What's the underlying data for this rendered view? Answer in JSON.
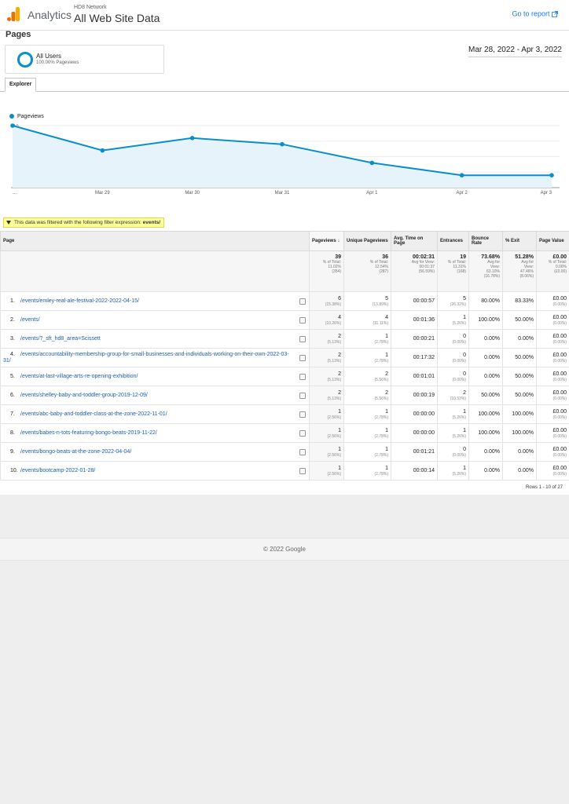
{
  "header": {
    "brand": "Analytics",
    "property": "HD8 Network",
    "view": "All Web Site Data",
    "goto_report": "Go to report"
  },
  "page_title": "Pages",
  "segment": {
    "name": "All Users",
    "sub": "100.00% Pageviews"
  },
  "date_range": "Mar 28, 2022 - Apr 3, 2022",
  "tab": "Explorer",
  "chart_data": {
    "type": "line",
    "series": [
      {
        "name": "Pageviews",
        "values": [
          10,
          6,
          8,
          7,
          4,
          2,
          2
        ]
      }
    ],
    "categories": [
      "...",
      "Mar 29",
      "Mar 30",
      "Mar 31",
      "Apr 1",
      "Apr 2",
      "Apr 3"
    ],
    "y_ticks": [
      "10",
      "5"
    ],
    "ylim": [
      0,
      10
    ],
    "grid": true,
    "color": "#0a8fca"
  },
  "filter": {
    "text": "This data was filtered with the following filter expression:",
    "expr": "events/"
  },
  "table": {
    "headers": {
      "page": "Page",
      "pageviews": "Pageviews",
      "unique": "Unique Pageviews",
      "avg_time": "Avg. Time on Page",
      "entrances": "Entrances",
      "bounce": "Bounce Rate",
      "exit": "% Exit",
      "value": "Page Value"
    },
    "totals": {
      "pageviews": {
        "v": "39",
        "s1": "% of Total:",
        "s2": "11.02%",
        "s3": "(354)"
      },
      "unique": {
        "v": "36",
        "s1": "% of Total:",
        "s2": "12.54%",
        "s3": "(287)"
      },
      "avg_time": {
        "v": "00:02:31",
        "s1": "Avg for View:",
        "s2": "00:01:37",
        "s3": "(56.59%)"
      },
      "entrances": {
        "v": "19",
        "s1": "% of Total:",
        "s2": "11.31%",
        "s3": "(168)"
      },
      "bounce": {
        "v": "73.68%",
        "s1": "Avg for",
        "s2": "View:",
        "s3": "63.10%",
        "s4": "(16.78%)"
      },
      "exit": {
        "v": "51.28%",
        "s1": "Avg for",
        "s2": "View:",
        "s3": "47.46%",
        "s4": "(8.06%)"
      },
      "value": {
        "v": "£0.00",
        "s1": "% of Total:",
        "s2": "0.00%",
        "s3": "(£0.00)"
      }
    },
    "rows": [
      {
        "idx": "1.",
        "page": "/events/emley-real-ale-festival-2022-2022-04-15/",
        "pv": "6",
        "pvp": "(15.38%)",
        "up": "5",
        "upp": "(13.89%)",
        "avg": "00:00:57",
        "ent": "5",
        "entp": "(26.32%)",
        "bounce": "80.00%",
        "exit": "83.33%",
        "val": "£0.00",
        "valp": "(0.00%)"
      },
      {
        "idx": "2.",
        "page": "/events/",
        "pv": "4",
        "pvp": "(10.26%)",
        "up": "4",
        "upp": "(11.11%)",
        "avg": "00:01:36",
        "ent": "1",
        "entp": "(5.26%)",
        "bounce": "100.00%",
        "exit": "50.00%",
        "val": "£0.00",
        "valp": "(0.00%)"
      },
      {
        "idx": "3.",
        "page": "/events/?_sft_hd8_area=Scissett",
        "pv": "2",
        "pvp": "(5.13%)",
        "up": "1",
        "upp": "(2.78%)",
        "avg": "00:00:21",
        "ent": "0",
        "entp": "(0.00%)",
        "bounce": "0.00%",
        "exit": "0.00%",
        "val": "£0.00",
        "valp": "(0.00%)"
      },
      {
        "idx": "4.",
        "page": "/events/accountability-membership-group-for-small-businesses-and-individuals-working-on-their-own-2022-03-31/",
        "pv": "2",
        "pvp": "(5.13%)",
        "up": "1",
        "upp": "(2.78%)",
        "avg": "00:17:32",
        "ent": "0",
        "entp": "(0.00%)",
        "bounce": "0.00%",
        "exit": "50.00%",
        "val": "£0.00",
        "valp": "(0.00%)"
      },
      {
        "idx": "5.",
        "page": "/events/at-last-village-arts-re-opening-exhibition/",
        "pv": "2",
        "pvp": "(5.13%)",
        "up": "2",
        "upp": "(5.56%)",
        "avg": "00:01:01",
        "ent": "0",
        "entp": "(0.00%)",
        "bounce": "0.00%",
        "exit": "50.00%",
        "val": "£0.00",
        "valp": "(0.00%)"
      },
      {
        "idx": "6.",
        "page": "/events/shelley-baby-and-toddler-group-2019-12-09/",
        "pv": "2",
        "pvp": "(5.13%)",
        "up": "2",
        "upp": "(5.56%)",
        "avg": "00:00:19",
        "ent": "2",
        "entp": "(10.53%)",
        "bounce": "50.00%",
        "exit": "50.00%",
        "val": "£0.00",
        "valp": "(0.00%)"
      },
      {
        "idx": "7.",
        "page": "/events/abc-baby-and-toddler-class-at-the-zone-2022-11-01/",
        "pv": "1",
        "pvp": "(2.56%)",
        "up": "1",
        "upp": "(2.78%)",
        "avg": "00:00:00",
        "ent": "1",
        "entp": "(5.26%)",
        "bounce": "100.00%",
        "exit": "100.00%",
        "val": "£0.00",
        "valp": "(0.00%)"
      },
      {
        "idx": "8.",
        "page": "/events/babes-n-tots-featuring-bongo-beats-2019-11-22/",
        "pv": "1",
        "pvp": "(2.56%)",
        "up": "1",
        "upp": "(2.78%)",
        "avg": "00:00:00",
        "ent": "1",
        "entp": "(5.26%)",
        "bounce": "100.00%",
        "exit": "100.00%",
        "val": "£0.00",
        "valp": "(0.00%)"
      },
      {
        "idx": "9.",
        "page": "/events/bongo-beats-at-the-zone-2022-04-04/",
        "pv": "1",
        "pvp": "(2.56%)",
        "up": "1",
        "upp": "(2.78%)",
        "avg": "00:01:21",
        "ent": "0",
        "entp": "(0.00%)",
        "bounce": "0.00%",
        "exit": "0.00%",
        "val": "£0.00",
        "valp": "(0.00%)"
      },
      {
        "idx": "10.",
        "page": "/events/bootcamp-2022-01-28/",
        "pv": "1",
        "pvp": "(2.56%)",
        "up": "1",
        "upp": "(2.78%)",
        "avg": "00:00:14",
        "ent": "1",
        "entp": "(5.26%)",
        "bounce": "0.00%",
        "exit": "0.00%",
        "val": "£0.00",
        "valp": "(0.00%)"
      }
    ]
  },
  "rows_info": "Rows 1 - 10 of 27",
  "footer": "© 2022 Google"
}
